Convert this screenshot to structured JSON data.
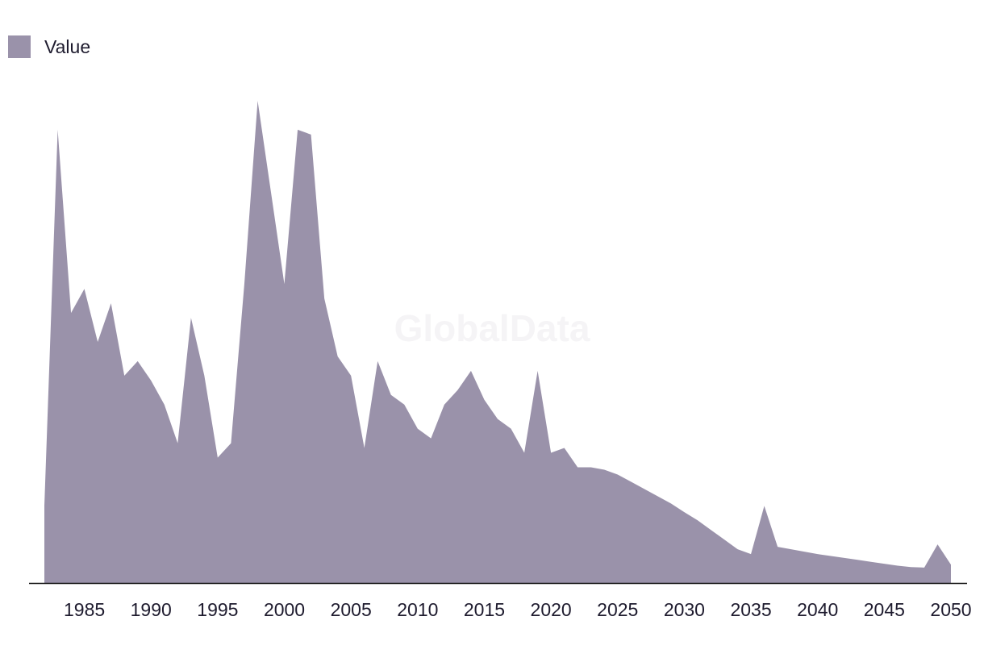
{
  "legend": {
    "label": "Value"
  },
  "watermark": "GlobalData",
  "colors": {
    "area": "#9a92aa",
    "axis": "#111111",
    "text": "#1e1b2e"
  },
  "chart_data": {
    "type": "area",
    "title": "",
    "xlabel": "",
    "ylabel": "",
    "legend_position": "top-left",
    "grid": false,
    "xlim": [
      1982,
      2050
    ],
    "ylim": [
      0,
      100
    ],
    "x_ticks": [
      1985,
      1990,
      1995,
      2000,
      2005,
      2010,
      2015,
      2020,
      2025,
      2030,
      2035,
      2040,
      2045,
      2050
    ],
    "series": [
      {
        "name": "Value",
        "x": [
          1982,
          1983,
          1984,
          1985,
          1986,
          1987,
          1988,
          1989,
          1990,
          1991,
          1992,
          1993,
          1994,
          1995,
          1996,
          1997,
          1998,
          1999,
          2000,
          2001,
          2002,
          2003,
          2004,
          2005,
          2006,
          2007,
          2008,
          2009,
          2010,
          2011,
          2012,
          2013,
          2014,
          2015,
          2016,
          2017,
          2018,
          2019,
          2020,
          2021,
          2022,
          2023,
          2024,
          2025,
          2026,
          2027,
          2028,
          2029,
          2030,
          2031,
          2032,
          2033,
          2034,
          2035,
          2036,
          2037,
          2038,
          2039,
          2040,
          2041,
          2042,
          2043,
          2044,
          2045,
          2046,
          2047,
          2048,
          2049,
          2050
        ],
        "values": [
          16,
          94,
          56,
          61,
          50,
          58,
          43,
          46,
          42,
          37,
          29,
          55,
          43,
          26,
          29,
          62,
          100,
          81,
          62,
          94,
          93,
          59,
          47,
          43,
          28,
          46,
          39,
          37,
          32,
          30,
          37,
          40,
          44,
          38,
          34,
          32,
          27,
          44,
          27,
          28,
          24,
          24,
          23.5,
          22.5,
          21,
          19.5,
          18,
          16.5,
          14.7,
          13,
          11,
          9,
          7,
          6,
          16,
          7.5,
          7,
          6.5,
          6,
          5.6,
          5.2,
          4.8,
          4.4,
          4,
          3.6,
          3.3,
          3.2,
          8,
          3.8
        ]
      }
    ]
  }
}
